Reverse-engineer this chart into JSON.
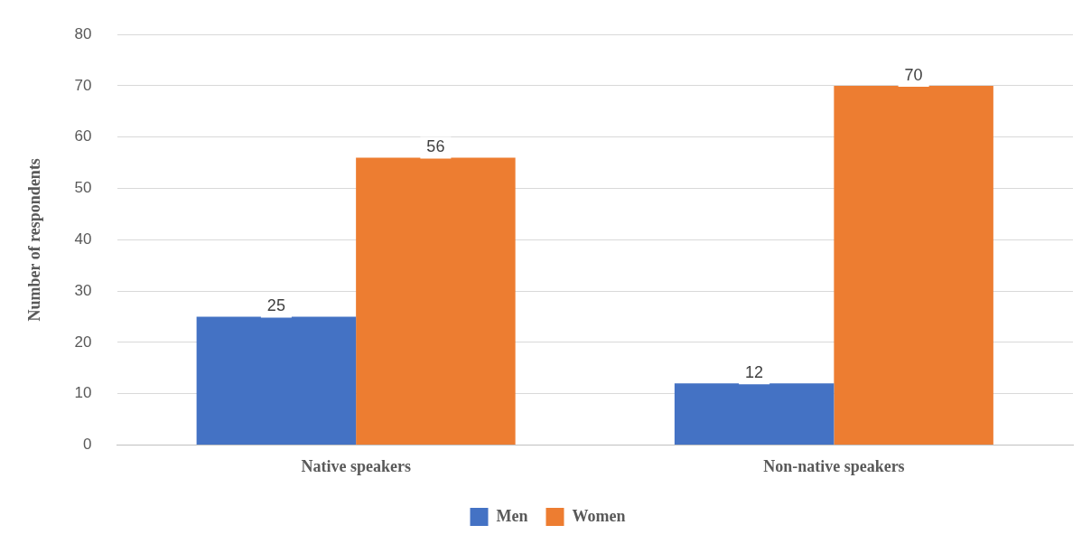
{
  "chart_data": {
    "type": "bar",
    "ylabel": "Number of respondents",
    "categories": [
      "Native speakers",
      "Non-native speakers"
    ],
    "series": [
      {
        "name": "Men",
        "color": "#4472c4",
        "values": [
          25,
          12
        ]
      },
      {
        "name": "Women",
        "color": "#ed7d31",
        "values": [
          56,
          70
        ]
      }
    ],
    "ylim": [
      0,
      80
    ],
    "yticks": [
      0,
      10,
      20,
      30,
      40,
      50,
      60,
      70,
      80
    ],
    "grid": "y",
    "legend": "bottom",
    "data_labels": true
  }
}
